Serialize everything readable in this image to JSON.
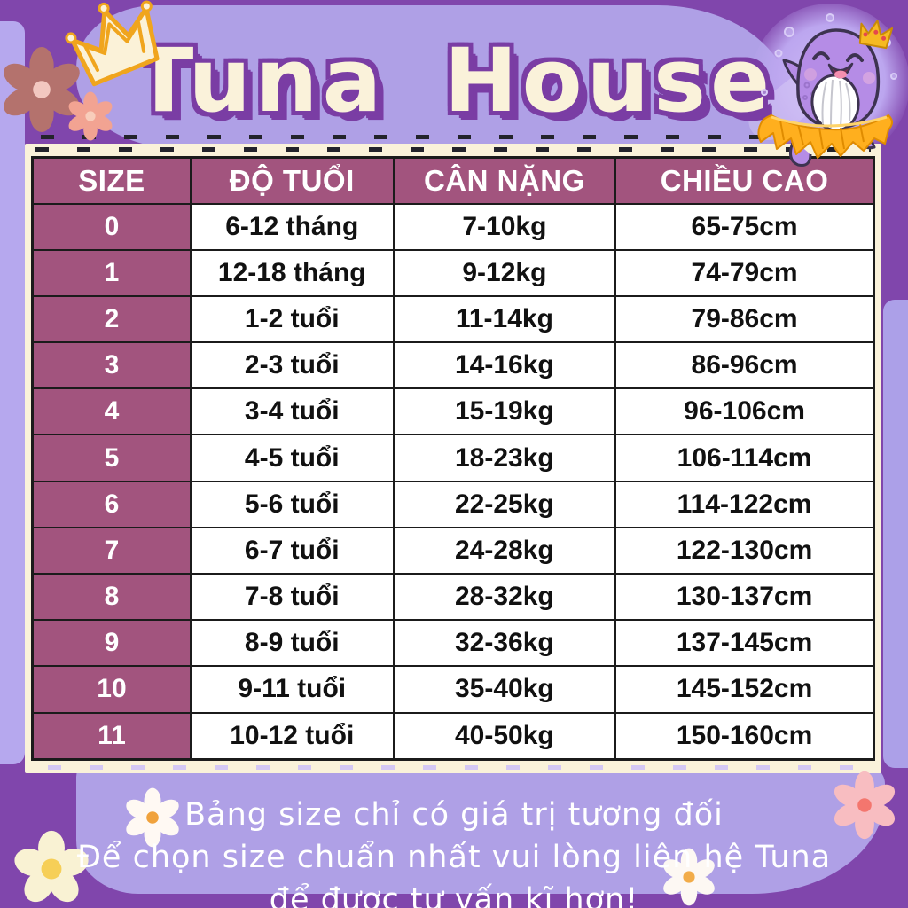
{
  "header": {
    "brand": "Tuna House"
  },
  "size_table": {
    "columns": [
      "SIZE",
      "ĐỘ TUỔI",
      "CÂN NẶNG",
      "CHIỀU CAO"
    ],
    "rows": [
      {
        "size": "0",
        "age": "6-12 tháng",
        "weight": "7-10kg",
        "height": "65-75cm"
      },
      {
        "size": "1",
        "age": "12-18 tháng",
        "weight": "9-12kg",
        "height": "74-79cm"
      },
      {
        "size": "2",
        "age": "1-2 tuổi",
        "weight": "11-14kg",
        "height": "79-86cm"
      },
      {
        "size": "3",
        "age": "2-3 tuổi",
        "weight": "14-16kg",
        "height": "86-96cm"
      },
      {
        "size": "4",
        "age": "3-4 tuổi",
        "weight": "15-19kg",
        "height": "96-106cm"
      },
      {
        "size": "5",
        "age": "4-5 tuổi",
        "weight": "18-23kg",
        "height": "106-114cm"
      },
      {
        "size": "6",
        "age": "5-6 tuổi",
        "weight": "22-25kg",
        "height": "114-122cm"
      },
      {
        "size": "7",
        "age": "6-7 tuổi",
        "weight": "24-28kg",
        "height": "122-130cm"
      },
      {
        "size": "8",
        "age": "7-8 tuổi",
        "weight": "28-32kg",
        "height": "130-137cm"
      },
      {
        "size": "9",
        "age": "8-9 tuổi",
        "weight": "32-36kg",
        "height": "137-145cm"
      },
      {
        "size": "10",
        "age": "9-11 tuổi",
        "weight": "35-40kg",
        "height": "145-152cm"
      },
      {
        "size": "11",
        "age": "10-12 tuổi",
        "weight": "40-50kg",
        "height": "150-160cm"
      }
    ]
  },
  "footer": {
    "line1": "Bảng size chỉ có giá trị tương đối",
    "line2": "Để chọn size chuẩn nhất vui lòng liên hệ Tuna",
    "line3": "để được tư vấn kĩ hơn!"
  },
  "colors": {
    "background_purple": "#8046AC",
    "blob_lavender": "#AFA0E6",
    "panel_cream": "#FAF2DA",
    "table_header_bg": "#A2547E",
    "table_border": "#1B1B1B",
    "header_text": "#FFFFFF",
    "cell_text": "#111111",
    "title_fill": "#FAF2DA",
    "title_outline": "#7A3DA4",
    "footer_text": "#FFFFFF",
    "crown_gold": "#F0A51D",
    "mascot_body": "#B58CE6",
    "tutu_orange": "#FFAF1E"
  },
  "decorations": {
    "flowers": [
      {
        "name": "dusty-rose-flower",
        "petals": 6,
        "petal_color": "#B4726D",
        "center_color": "#F2C7C0"
      },
      {
        "name": "salmon-flower",
        "petals": 6,
        "petal_color": "#F2A392",
        "center_color": "#F8CDBB"
      },
      {
        "name": "white-daisy-flower",
        "petals": 6,
        "petal_color": "#FFF9F3",
        "center_color": "#F0A23C"
      },
      {
        "name": "pink-flower",
        "petals": 6,
        "petal_color": "#F8BDC1",
        "center_color": "#F4766E"
      },
      {
        "name": "cream-flower",
        "petals": 5,
        "petal_color": "#F9F2D3",
        "center_color": "#F6CF57"
      },
      {
        "name": "white-daisy-flower",
        "petals": 6,
        "petal_color": "#FDF8F3",
        "center_color": "#F2AC49"
      }
    ]
  }
}
